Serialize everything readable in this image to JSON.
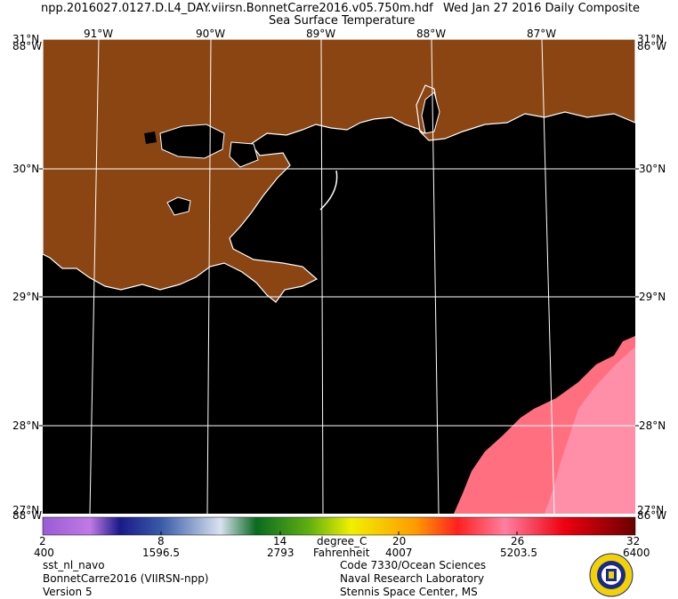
{
  "header": {
    "filename": "npp.2016027.0127.D.L4_DAY.viirsn.BonnetCarre2016.v05.750m.hdf",
    "date": "Wed Jan 27 2016 Daily Composite",
    "product": "Sea Surface Temperature"
  },
  "map": {
    "lon_labels": [
      "91°W",
      "90°W",
      "89°W",
      "88°W",
      "87°W"
    ],
    "lat_labels": [
      "30°N",
      "29°N",
      "28°N"
    ],
    "corner_top_left": "31°N",
    "corner_top_left_lon": "88°W",
    "corner_top_right": "31°N",
    "corner_top_right_lon": "86°W",
    "corner_bottom_left": "27°N",
    "corner_bottom_left_lon": "88°W",
    "corner_bottom_right": "27°N",
    "corner_bottom_right_lon": "86°W",
    "colors": {
      "land": "#8b4513",
      "water": "#000000",
      "coast": "#ffffff",
      "grid": "#ffffff",
      "sst_warm": "#ff6f7f",
      "sst_hot": "#ff8fa8"
    }
  },
  "colorbar": {
    "celsius_ticks": [
      "2",
      "8",
      "14",
      "20",
      "26",
      "32"
    ],
    "fahrenheit_ticks": [
      "400",
      "1596.5",
      "2793",
      "4007",
      "5203.5",
      "6400"
    ],
    "unit_c": "degree_C",
    "unit_f": "Fahrenheit",
    "min": 2,
    "max": 32
  },
  "footer": {
    "left": [
      "sst_nl_navo",
      "BonnetCarre2016 (VIIRSN-npp)",
      "Version 5"
    ],
    "right": [
      "Code 7330/Ocean Sciences",
      "Naval Research Laboratory",
      "Stennis Space Center, MS"
    ]
  },
  "seal": {
    "name": "naval-research-laboratory-seal"
  }
}
